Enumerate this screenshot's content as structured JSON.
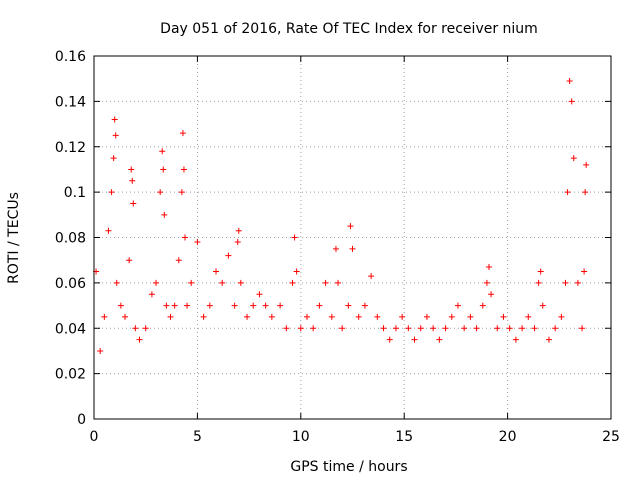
{
  "chart_data": {
    "type": "scatter",
    "title": "Day 051 of 2016, Rate Of TEC Index for receiver nium",
    "xlabel": "GPS time / hours",
    "ylabel": "ROTI / TECUs",
    "xlim": [
      0,
      25
    ],
    "ylim": [
      0,
      0.16
    ],
    "xticks": [
      0,
      5,
      10,
      15,
      20,
      25
    ],
    "xtick_labels": [
      "0",
      "5",
      "10",
      "15",
      "20",
      "25"
    ],
    "yticks": [
      0,
      0.02,
      0.04,
      0.06,
      0.08,
      0.1,
      0.12,
      0.14,
      0.16
    ],
    "ytick_labels": [
      "0",
      "0.02",
      "0.04",
      "0.06",
      "0.08",
      "0.1",
      "0.12",
      "0.14",
      "0.16"
    ],
    "grid": true,
    "marker": "+",
    "color": "#ff0000",
    "series": [
      {
        "x": [
          0.1,
          0.3,
          0.5,
          0.7,
          0.85,
          0.95,
          1.0,
          1.05,
          1.1,
          1.3,
          1.5,
          1.7,
          1.8,
          1.85,
          1.9,
          2.0,
          2.2,
          2.5,
          2.8,
          3.0,
          3.2,
          3.3,
          3.35,
          3.4,
          3.5,
          3.7,
          3.9,
          4.1,
          4.25,
          4.3,
          4.35,
          4.4,
          4.5,
          4.7,
          5.0,
          5.3,
          5.6,
          5.9,
          6.2,
          6.5,
          6.8,
          6.95,
          7.0,
          7.1,
          7.4,
          7.7,
          8.0,
          8.3,
          8.6,
          9.0,
          9.3,
          9.6,
          9.7,
          9.8,
          10.0,
          10.3,
          10.6,
          10.9,
          11.2,
          11.5,
          11.7,
          11.8,
          12.0,
          12.3,
          12.4,
          12.5,
          12.8,
          13.1,
          13.4,
          13.7,
          14.0,
          14.3,
          14.6,
          14.9,
          15.2,
          15.5,
          15.8,
          16.1,
          16.4,
          16.7,
          17.0,
          17.3,
          17.6,
          17.9,
          18.2,
          18.5,
          18.8,
          19.0,
          19.1,
          19.2,
          19.5,
          19.8,
          20.1,
          20.4,
          20.7,
          21.0,
          21.3,
          21.5,
          21.6,
          21.7,
          22.0,
          22.3,
          22.6,
          22.8,
          22.9,
          23.0,
          23.1,
          23.2,
          23.4,
          23.6,
          23.7,
          23.75,
          23.8
        ],
        "y": [
          0.065,
          0.03,
          0.045,
          0.083,
          0.1,
          0.115,
          0.132,
          0.125,
          0.06,
          0.05,
          0.045,
          0.07,
          0.11,
          0.105,
          0.095,
          0.04,
          0.035,
          0.04,
          0.055,
          0.06,
          0.1,
          0.118,
          0.11,
          0.09,
          0.05,
          0.045,
          0.05,
          0.07,
          0.1,
          0.126,
          0.11,
          0.08,
          0.05,
          0.06,
          0.078,
          0.045,
          0.05,
          0.065,
          0.06,
          0.072,
          0.05,
          0.078,
          0.083,
          0.06,
          0.045,
          0.05,
          0.055,
          0.05,
          0.045,
          0.05,
          0.04,
          0.06,
          0.08,
          0.065,
          0.04,
          0.045,
          0.04,
          0.05,
          0.06,
          0.045,
          0.075,
          0.06,
          0.04,
          0.05,
          0.085,
          0.075,
          0.045,
          0.05,
          0.063,
          0.045,
          0.04,
          0.035,
          0.04,
          0.045,
          0.04,
          0.035,
          0.04,
          0.045,
          0.04,
          0.035,
          0.04,
          0.045,
          0.05,
          0.04,
          0.045,
          0.04,
          0.05,
          0.06,
          0.067,
          0.055,
          0.04,
          0.045,
          0.04,
          0.035,
          0.04,
          0.045,
          0.04,
          0.06,
          0.065,
          0.05,
          0.035,
          0.04,
          0.045,
          0.06,
          0.1,
          0.149,
          0.14,
          0.115,
          0.06,
          0.04,
          0.065,
          0.1,
          0.112
        ]
      }
    ]
  }
}
